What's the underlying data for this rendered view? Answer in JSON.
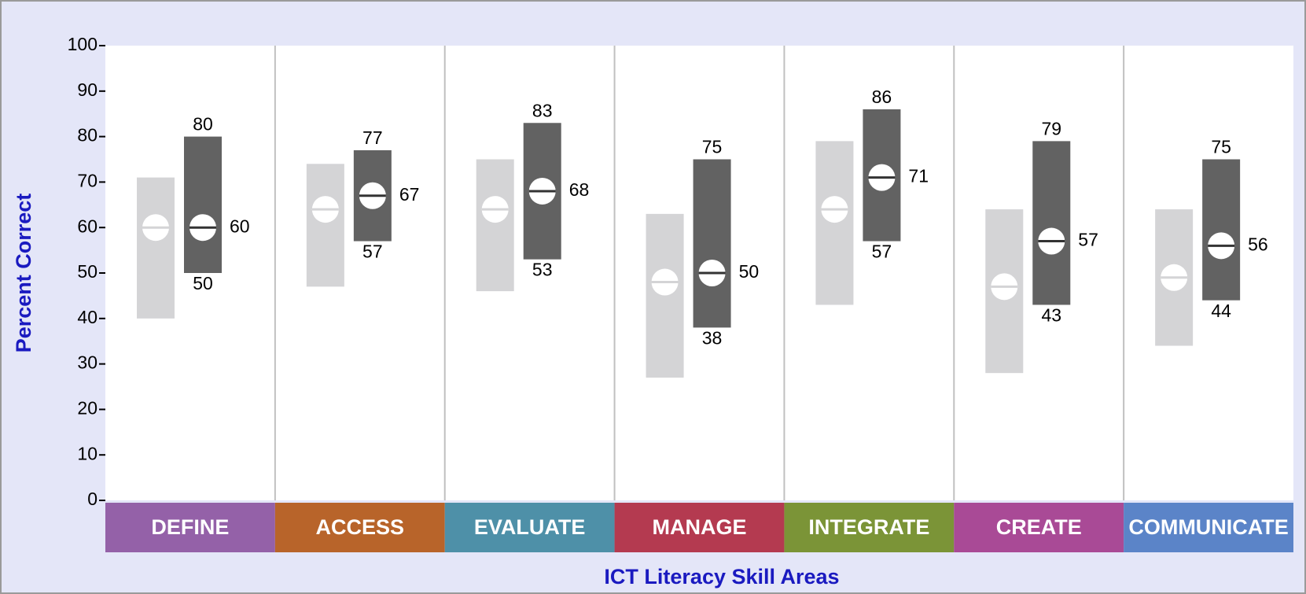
{
  "chart_data": {
    "type": "range-box",
    "x_label": "ICT Literacy Skill Areas",
    "y_label": "Percent Correct",
    "categories": [
      "DEFINE",
      "ACCESS",
      "EVALUATE",
      "MANAGE",
      "INTEGRATE",
      "CREATE",
      "COMMUNICATE"
    ],
    "category_colors": [
      "#9461a8",
      "#b8642a",
      "#4e90a8",
      "#b43a50",
      "#7b9437",
      "#a94a96",
      "#5b84c8"
    ],
    "ylim": [
      0,
      100
    ],
    "yticks": [
      0,
      10,
      20,
      30,
      40,
      50,
      60,
      70,
      80,
      90,
      100
    ],
    "series": [
      {
        "color": "#d4d4d6",
        "labeled": false,
        "low": [
          40,
          47,
          46,
          27,
          43,
          28,
          34
        ],
        "median": [
          60,
          64,
          64,
          48,
          64,
          47,
          49
        ],
        "high": [
          71,
          74,
          75,
          63,
          79,
          64,
          64
        ]
      },
      {
        "color": "#626262",
        "labeled": true,
        "low": [
          50,
          57,
          53,
          38,
          57,
          43,
          44
        ],
        "median": [
          60,
          67,
          68,
          50,
          71,
          57,
          56
        ],
        "high": [
          80,
          77,
          83,
          75,
          86,
          79,
          75
        ]
      }
    ]
  }
}
